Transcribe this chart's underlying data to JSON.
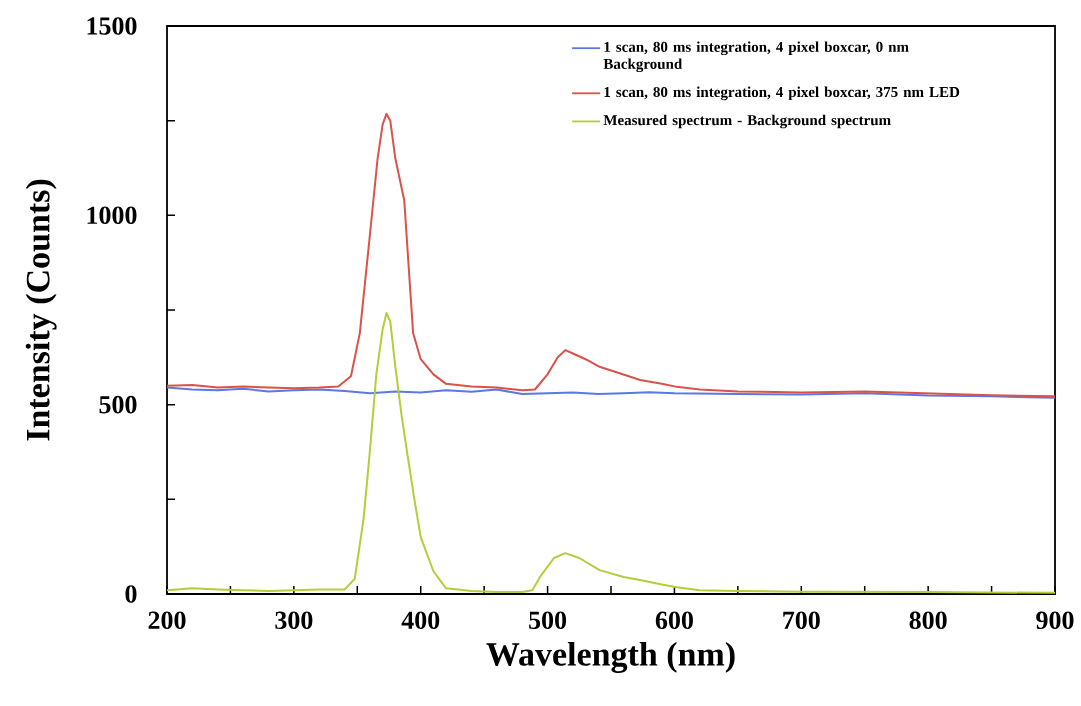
{
  "chart_data": {
    "type": "line",
    "xlabel": "Wavelength (nm)",
    "ylabel": "Intensity (Counts)",
    "xlim": [
      200,
      900
    ],
    "ylim": [
      0,
      1500
    ],
    "xticks": [
      200,
      {
        "value": 250,
        "label": null
      },
      300,
      {
        "value": 350,
        "label": null
      },
      400,
      {
        "value": 450,
        "label": null
      },
      500,
      {
        "value": 550,
        "label": null
      },
      600,
      {
        "value": 650,
        "label": null
      },
      700,
      {
        "value": 750,
        "label": null
      },
      800,
      {
        "value": 850,
        "label": null
      },
      900
    ],
    "yticks": [
      0,
      {
        "value": 250,
        "label": null
      },
      500,
      {
        "value": 750,
        "label": null
      },
      1000,
      {
        "value": 1250,
        "label": null
      },
      1500
    ],
    "legend": "top right",
    "line_style": "solid",
    "marker": "none",
    "series": [
      {
        "name": "1 scan, 80 ms integration, 4 pixel boxcar, 0 nm Background",
        "color": "#5a78e6",
        "x": [
          200,
          220,
          240,
          260,
          280,
          300,
          320,
          340,
          360,
          380,
          400,
          420,
          440,
          460,
          480,
          500,
          520,
          540,
          560,
          580,
          600,
          650,
          700,
          750,
          800,
          850,
          900
        ],
        "values": [
          545,
          540,
          538,
          542,
          535,
          538,
          540,
          536,
          530,
          535,
          532,
          538,
          534,
          540,
          528,
          530,
          532,
          528,
          530,
          533,
          530,
          528,
          527,
          530,
          524,
          522,
          518
        ]
      },
      {
        "name": "1 scan, 80 ms integration, 4 pixel boxcar, 375 nm LED",
        "color": "#d9534a",
        "x": [
          200,
          220,
          240,
          260,
          280,
          300,
          320,
          335,
          345,
          352,
          360,
          366,
          370,
          373,
          376,
          380,
          387,
          394,
          400,
          410,
          420,
          440,
          460,
          480,
          490,
          500,
          508,
          514,
          520,
          530,
          541,
          555,
          573,
          590,
          602,
          620,
          650,
          700,
          750,
          800,
          850,
          900
        ],
        "values": [
          550,
          552,
          545,
          548,
          545,
          543,
          545,
          548,
          575,
          689,
          950,
          1150,
          1240,
          1268,
          1250,
          1150,
          1040,
          689,
          620,
          580,
          555,
          548,
          545,
          538,
          540,
          580,
          625,
          644,
          635,
          620,
          600,
          585,
          565,
          555,
          547,
          540,
          535,
          532,
          535,
          530,
          525,
          522
        ]
      },
      {
        "name": "Measured spectrum - Background spectrum",
        "color": "#b5cc3c",
        "x": [
          200,
          220,
          240,
          260,
          280,
          300,
          320,
          340,
          348,
          355,
          360,
          365,
          370,
          373,
          376,
          380,
          385,
          389,
          395,
          400,
          410,
          420,
          440,
          460,
          480,
          488,
          495,
          505,
          514,
          525,
          541,
          560,
          573,
          590,
          602,
          620,
          650,
          700,
          800,
          900
        ],
        "values": [
          10,
          15,
          12,
          10,
          8,
          10,
          12,
          12,
          40,
          200,
          380,
          580,
          700,
          742,
          720,
          600,
          470,
          380,
          250,
          150,
          60,
          15,
          8,
          5,
          5,
          10,
          50,
          95,
          108,
          95,
          63,
          45,
          37,
          25,
          18,
          10,
          8,
          6,
          5,
          3
        ]
      }
    ]
  }
}
